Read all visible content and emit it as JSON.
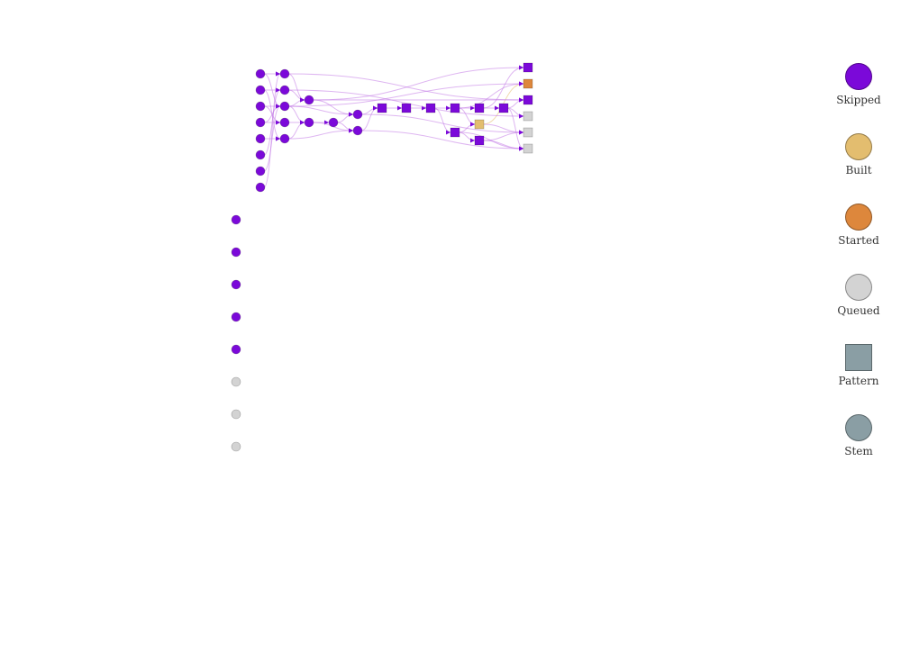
{
  "colors": {
    "skipped": "#7b09d9",
    "built": "#e3bd6f",
    "started": "#dd873c",
    "queued": "#d3d3d3",
    "edge": "#c27ae6",
    "edge_built": "#e3bd6f"
  },
  "legend": [
    {
      "id": "skipped",
      "label": "Skipped",
      "shape": "circle",
      "color": "#7b09d9"
    },
    {
      "id": "built",
      "label": "Built",
      "shape": "circle",
      "color": "#e3bd6f"
    },
    {
      "id": "started",
      "label": "Started",
      "shape": "circle",
      "color": "#dd873c"
    },
    {
      "id": "queued",
      "label": "Queued",
      "shape": "circle",
      "color": "#d3d3d3"
    },
    {
      "id": "pattern",
      "label": "Pattern",
      "shape": "square",
      "color": "#8a9ea4"
    },
    {
      "id": "stem",
      "label": "Stem",
      "shape": "circle",
      "color": "#8a9ea4"
    }
  ]
}
